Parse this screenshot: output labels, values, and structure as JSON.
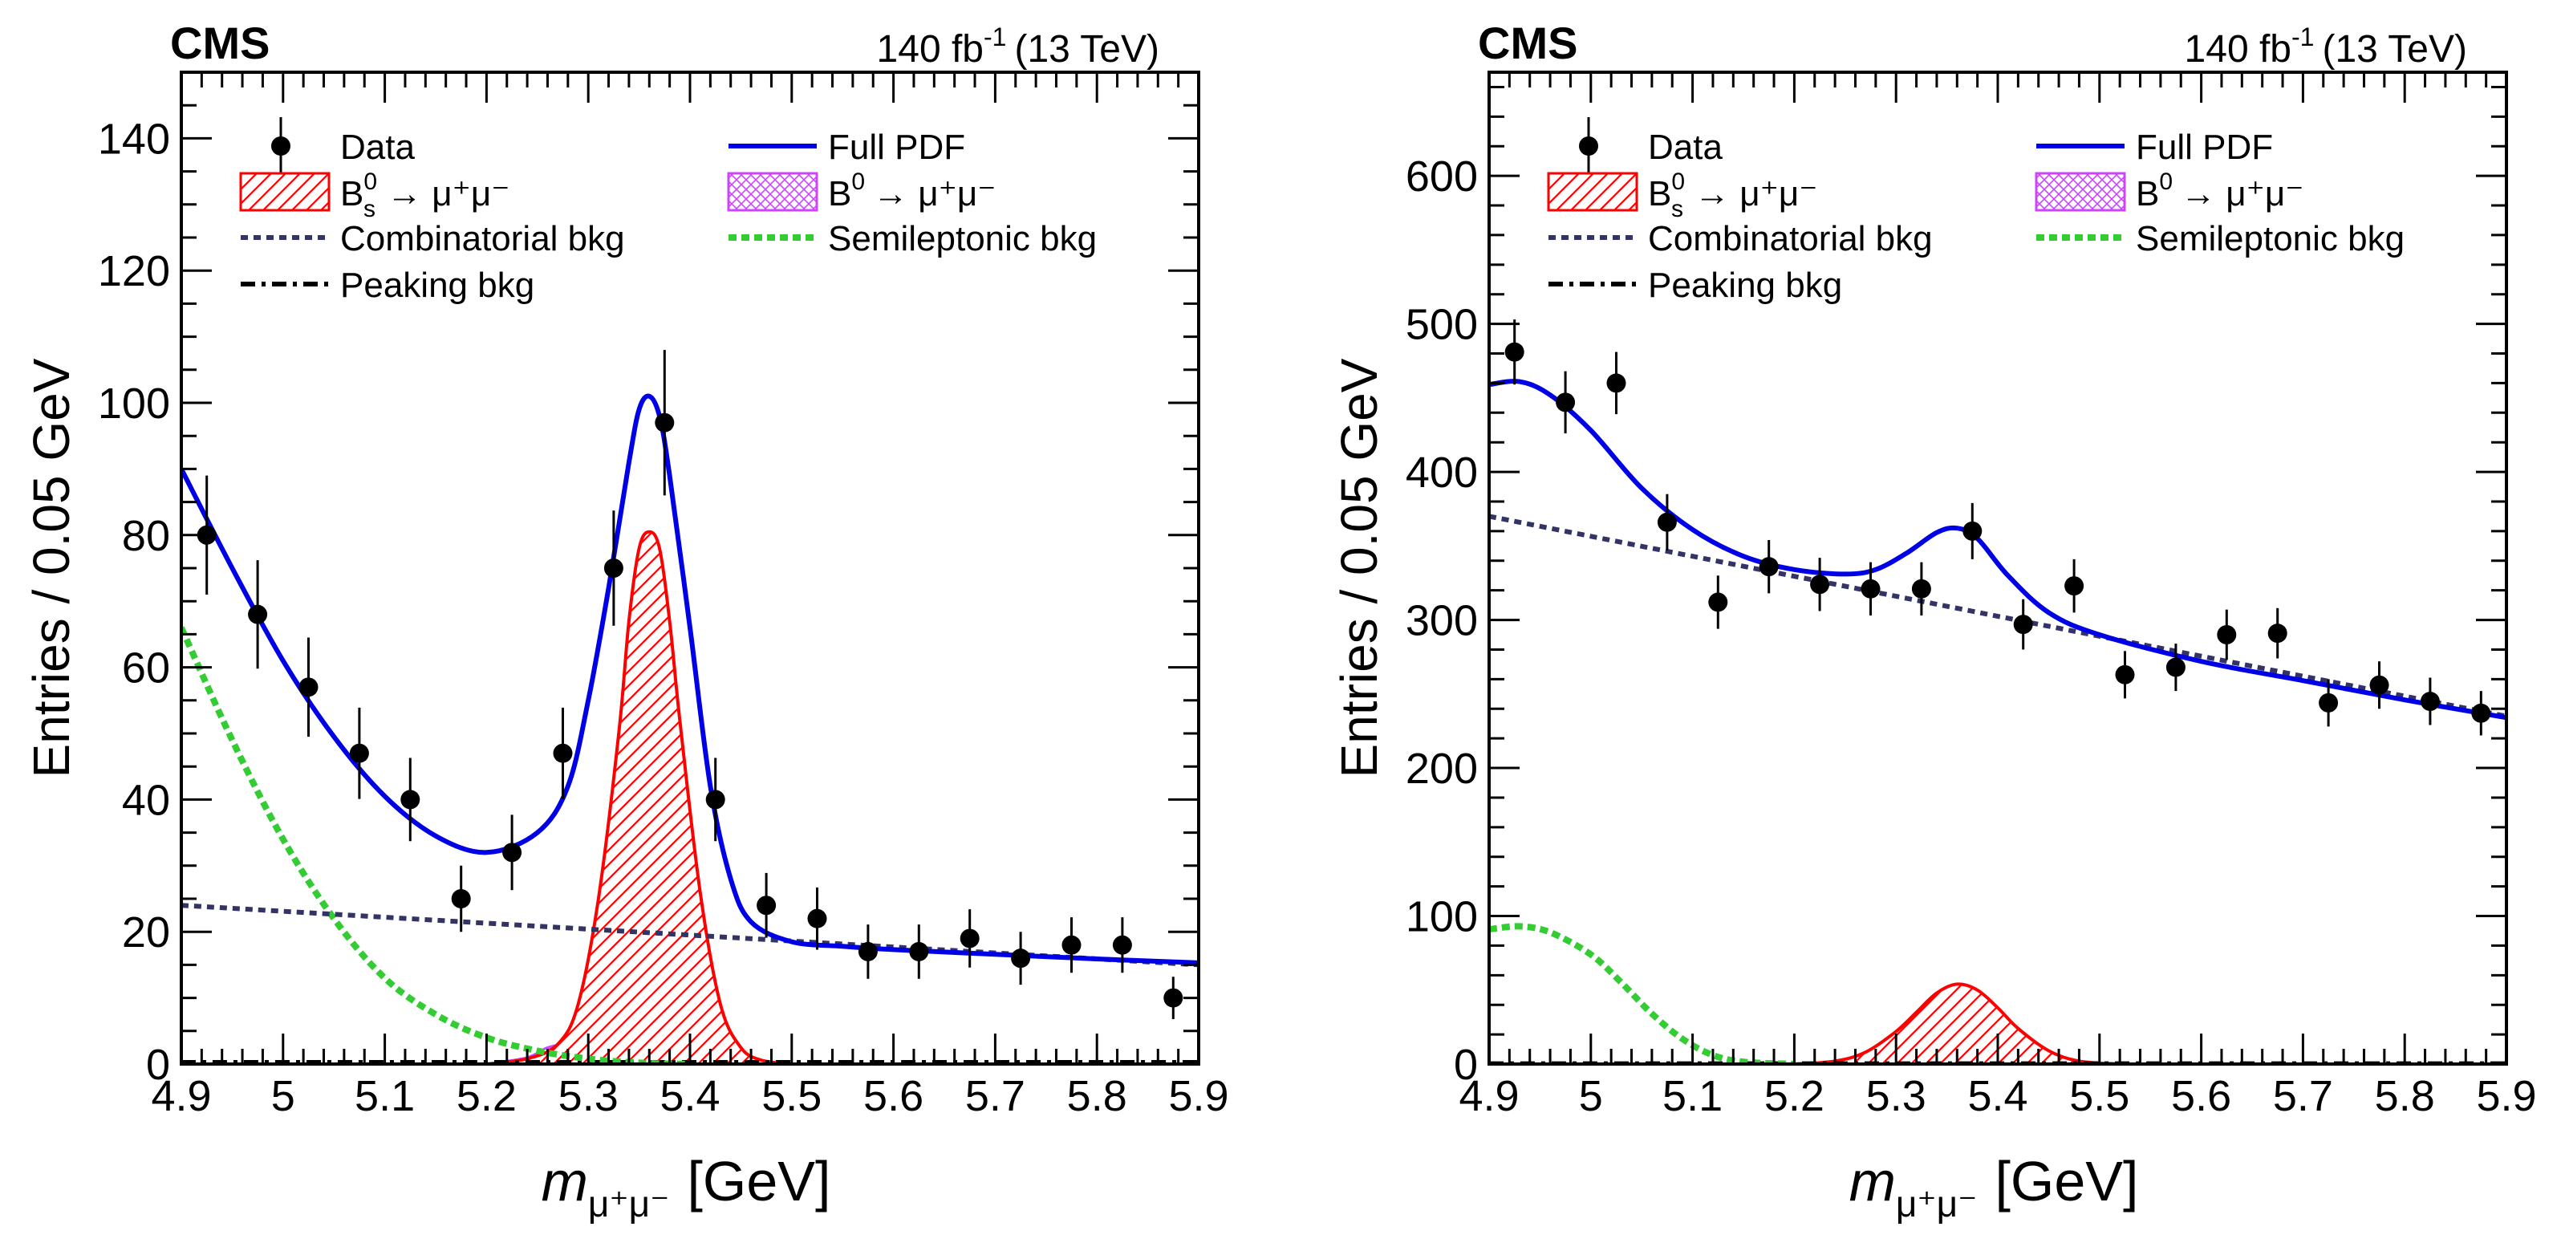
{
  "header": {
    "sup_minus1": "-1",
    "lumi_prefix": "140 fb",
    "energy": "(13 TeV)"
  },
  "legend": {
    "data": "Data",
    "full_pdf": "Full PDF",
    "combinatorial": "Combinatorial bkg",
    "semileptonic": "Semileptonic bkg",
    "peaking": "Peaking bkg",
    "bs_main": "B",
    "bs_sup": "0",
    "bs_sub": "s",
    "b0_main": "B",
    "b0_sup": "0",
    "arrow_mumu": "→ μ⁺μ⁻"
  },
  "colors": {
    "full_pdf": "#0000e6",
    "bs_signal": "#ff0000",
    "b0_signal": "#cc44ff",
    "combinatorial": "#333366",
    "semileptonic": "#33cc33",
    "peaking": "#000000",
    "data": "#000000"
  },
  "chart_data": [
    {
      "type": "scatter",
      "experiment": "CMS",
      "xlabel_italic": "m",
      "xlabel_sub": "μ⁺μ⁻",
      "xlabel_unit": "[GeV]",
      "ylabel": "Entries / 0.05 GeV",
      "xlim": [
        4.9,
        5.9
      ],
      "ylim": [
        0,
        150
      ],
      "x_ticks": [
        "4.9",
        "5",
        "5.1",
        "5.2",
        "5.3",
        "5.4",
        "5.5",
        "5.6",
        "5.7",
        "5.8",
        "5.9"
      ],
      "y_ticks": [
        "0",
        "20",
        "40",
        "60",
        "80",
        "100",
        "120",
        "140"
      ],
      "y_major": 20,
      "y_minor": 5,
      "x_minor": 0.02,
      "data_x": [
        4.925,
        4.975,
        5.025,
        5.075,
        5.125,
        5.175,
        5.225,
        5.275,
        5.325,
        5.375,
        5.425,
        5.475,
        5.525,
        5.575,
        5.625,
        5.675,
        5.725,
        5.775,
        5.825,
        5.875
      ],
      "data_y": [
        80,
        68,
        57,
        47,
        40,
        25,
        32,
        47,
        75,
        97,
        40,
        24,
        22,
        17,
        17,
        19,
        16,
        18,
        18,
        10
      ],
      "data_err": [
        9,
        8.2,
        7.5,
        6.9,
        6.3,
        5,
        5.7,
        6.9,
        8.7,
        11,
        6.3,
        4.9,
        4.7,
        4.1,
        4.1,
        4.4,
        4,
        4.2,
        4.2,
        3.2
      ],
      "full_pdf": {
        "x": [
          4.9,
          4.95,
          5.0,
          5.05,
          5.1,
          5.15,
          5.2,
          5.25,
          5.28,
          5.3,
          5.32,
          5.34,
          5.35,
          5.36,
          5.37,
          5.38,
          5.4,
          5.42,
          5.44,
          5.46,
          5.5,
          5.55,
          5.6,
          5.7,
          5.8,
          5.9
        ],
        "y": [
          90,
          75,
          61,
          49.5,
          40.5,
          34.5,
          32,
          35,
          42,
          55,
          72,
          91,
          99,
          101,
          98,
          89,
          66,
          42,
          28,
          21.5,
          18.5,
          17.8,
          17.3,
          16.6,
          15.9,
          15.3
        ]
      },
      "bs_signal": {
        "x": [
          5.2,
          5.24,
          5.27,
          5.29,
          5.31,
          5.33,
          5.34,
          5.35,
          5.36,
          5.37,
          5.38,
          5.39,
          5.41,
          5.43,
          5.45,
          5.47,
          5.5
        ],
        "y": [
          0,
          0.8,
          3,
          9,
          25,
          50,
          67,
          78,
          80.5,
          78,
          67,
          52,
          26,
          9,
          2.5,
          0.6,
          0
        ]
      },
      "b0_signal": {
        "x": [
          5.2,
          5.24,
          5.26,
          5.28,
          5.3,
          5.32,
          5.35
        ],
        "y": [
          0,
          1,
          2.5,
          3,
          2.5,
          1,
          0
        ]
      },
      "combinatorial": {
        "x": [
          4.9,
          5.9
        ],
        "y": [
          24,
          15
        ]
      },
      "semileptonic": {
        "x": [
          4.9,
          4.95,
          5.0,
          5.05,
          5.1,
          5.15,
          5.2,
          5.25,
          5.3,
          5.35,
          5.4
        ],
        "y": [
          66,
          49,
          34,
          22,
          13,
          7.5,
          4,
          2,
          0.8,
          0.2,
          0
        ]
      },
      "peaking": {
        "x": [
          4.9,
          5.9
        ],
        "y": [
          0.3,
          0.3
        ]
      }
    },
    {
      "type": "scatter",
      "experiment": "CMS",
      "xlabel_italic": "m",
      "xlabel_sub": "μ⁺μ⁻",
      "xlabel_unit": "[GeV]",
      "ylabel": "Entries / 0.05 GeV",
      "xlim": [
        4.9,
        5.9
      ],
      "ylim": [
        0,
        670
      ],
      "x_ticks": [
        "4.9",
        "5",
        "5.1",
        "5.2",
        "5.3",
        "5.4",
        "5.5",
        "5.6",
        "5.7",
        "5.8",
        "5.9"
      ],
      "y_ticks": [
        "0",
        "100",
        "200",
        "300",
        "400",
        "500",
        "600"
      ],
      "y_major": 100,
      "y_minor": 20,
      "x_minor": 0.02,
      "data_x": [
        4.925,
        4.975,
        5.025,
        5.075,
        5.125,
        5.175,
        5.225,
        5.275,
        5.325,
        5.375,
        5.425,
        5.475,
        5.525,
        5.575,
        5.625,
        5.675,
        5.725,
        5.775,
        5.825,
        5.875
      ],
      "data_y": [
        481,
        447,
        460,
        366,
        312,
        336,
        324,
        321,
        321,
        360,
        297,
        323,
        263,
        268,
        290,
        291,
        244,
        256,
        245,
        237
      ],
      "data_err": [
        22,
        21,
        21,
        19,
        18,
        18,
        18,
        18,
        18,
        19,
        17,
        18,
        16,
        16,
        17,
        17,
        16,
        16,
        16,
        15
      ],
      "full_pdf": {
        "x": [
          4.9,
          4.93,
          4.96,
          5.0,
          5.05,
          5.1,
          5.15,
          5.2,
          5.25,
          5.28,
          5.31,
          5.34,
          5.36,
          5.38,
          5.41,
          5.45,
          5.5,
          5.6,
          5.7,
          5.8,
          5.9
        ],
        "y": [
          459,
          461,
          452,
          428,
          389,
          361,
          343,
          334,
          331,
          334,
          345,
          359,
          362,
          355,
          330,
          305,
          290,
          272,
          259,
          246,
          234
        ]
      },
      "bs_signal": {
        "x": [
          5.2,
          5.24,
          5.27,
          5.3,
          5.32,
          5.34,
          5.36,
          5.38,
          5.4,
          5.42,
          5.45,
          5.48,
          5.52
        ],
        "y": [
          0,
          2,
          8,
          22,
          35,
          48,
          54,
          50,
          38,
          24,
          9,
          2,
          0
        ]
      },
      "b0_signal": {
        "x": [
          5.2,
          5.3,
          5.4
        ],
        "y": [
          0,
          0.5,
          0
        ]
      },
      "combinatorial": {
        "x": [
          4.9,
          5.9
        ],
        "y": [
          370,
          235
        ]
      },
      "semileptonic": {
        "x": [
          4.9,
          4.93,
          4.96,
          5.0,
          5.03,
          5.06,
          5.09,
          5.12,
          5.15,
          5.2
        ],
        "y": [
          91,
          93,
          89,
          74,
          55,
          34,
          17,
          6,
          1.5,
          0
        ]
      },
      "peaking": {
        "x": [
          4.9,
          5.9
        ],
        "y": [
          0.5,
          0.5
        ]
      }
    }
  ]
}
